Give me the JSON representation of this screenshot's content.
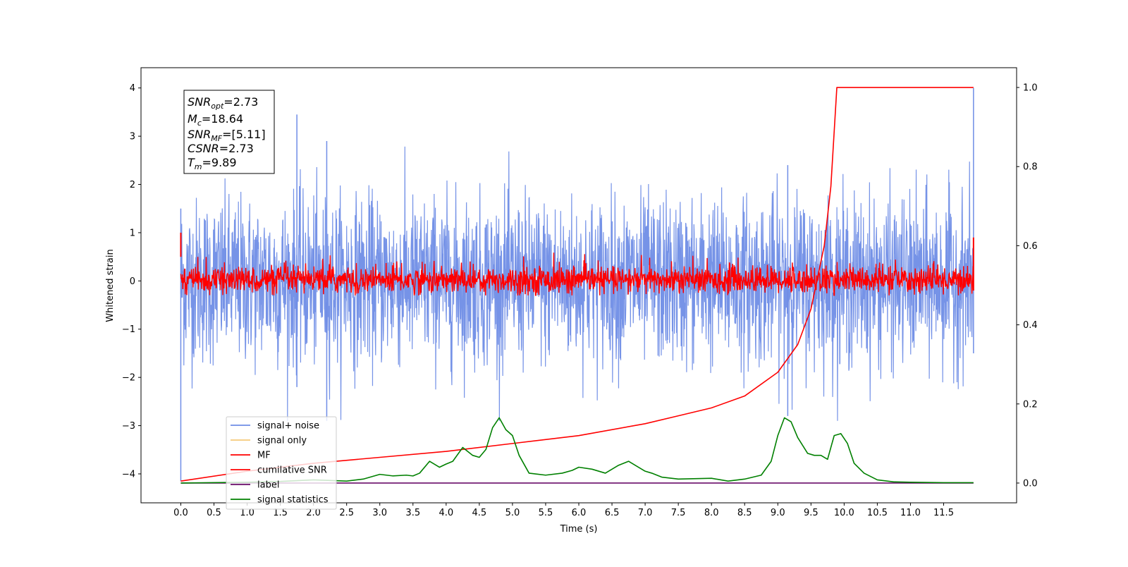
{
  "chart_data": {
    "type": "line",
    "xlabel": "Time (s)",
    "ylabel": "Whitened strain",
    "xlim": [
      -0.6,
      12.6
    ],
    "ylim": [
      -4.6,
      4.42
    ],
    "ylim_right": [
      -0.05,
      1.05
    ],
    "x_ticks": [
      "0.0",
      "0.5",
      "1.0",
      "1.5",
      "2.0",
      "2.5",
      "3.0",
      "3.5",
      "4.0",
      "4.5",
      "5.0",
      "5.5",
      "6.0",
      "6.5",
      "7.0",
      "7.5",
      "8.0",
      "8.5",
      "9.0",
      "9.5",
      "10.0",
      "10.5",
      "11.0",
      "11.5"
    ],
    "y_ticks_left": [
      "4",
      "3",
      "2",
      "1",
      "0",
      "−1",
      "−2",
      "−3",
      "−4"
    ],
    "y_ticks_right": [
      "1.0",
      "0.8",
      "0.6",
      "0.4",
      "0.2",
      "0.0"
    ],
    "grid": false,
    "legend_position": "lower-left",
    "info_box": {
      "snr_opt": {
        "base": "SNR",
        "sub": "opt",
        "value": "=2.73"
      },
      "mc": {
        "base": "M",
        "sub": "c",
        "value": "=18.64"
      },
      "snr_mf": {
        "base": "SNR",
        "sub": "MF",
        "value": "=[5.11]"
      },
      "csnr": {
        "base": "CSNR",
        "sub": "",
        "value": "=2.73"
      },
      "tm": {
        "base": "T",
        "sub": "m",
        "value": "=9.89"
      }
    },
    "series": [
      {
        "name": "signal+ noise",
        "axis": "left",
        "color": "#6f8de6",
        "description_range": [
          -2.9,
          3.45
        ],
        "spike_times": [
          1.75,
          2.2,
          9.15,
          11.95
        ]
      },
      {
        "name": "signal only",
        "axis": "left",
        "color": "#f5c97a",
        "values": []
      },
      {
        "name": "MF",
        "axis": "left",
        "color": "#ff0000",
        "description_range": [
          -0.3,
          0.75
        ]
      },
      {
        "name": "cumilative SNR",
        "axis": "right",
        "color": "#ff0000",
        "x": [
          0.0,
          1.0,
          2.0,
          3.0,
          4.0,
          5.0,
          6.0,
          7.0,
          7.5,
          8.0,
          8.5,
          9.0,
          9.3,
          9.5,
          9.7,
          9.8,
          9.89,
          11.95
        ],
        "values": [
          0.005,
          0.03,
          0.05,
          0.065,
          0.08,
          0.1,
          0.12,
          0.15,
          0.17,
          0.19,
          0.22,
          0.28,
          0.35,
          0.44,
          0.6,
          0.75,
          1.0,
          1.0
        ]
      },
      {
        "name": "label",
        "axis": "right",
        "color": "#6a0d6a",
        "x": [
          0.0,
          11.95
        ],
        "values": [
          0.0,
          0.0
        ]
      },
      {
        "name": "signal statistics",
        "axis": "right",
        "color": "#008000",
        "x": [
          0.0,
          1.0,
          1.5,
          2.0,
          2.5,
          2.75,
          3.0,
          3.2,
          3.4,
          3.5,
          3.6,
          3.75,
          3.9,
          4.0,
          4.1,
          4.25,
          4.4,
          4.5,
          4.6,
          4.7,
          4.8,
          4.9,
          5.0,
          5.1,
          5.25,
          5.5,
          5.75,
          5.9,
          6.0,
          6.2,
          6.4,
          6.6,
          6.75,
          6.9,
          7.0,
          7.1,
          7.25,
          7.5,
          8.0,
          8.25,
          8.5,
          8.75,
          8.9,
          9.0,
          9.1,
          9.2,
          9.3,
          9.45,
          9.55,
          9.65,
          9.75,
          9.85,
          9.95,
          10.05,
          10.15,
          10.3,
          10.5,
          10.75,
          11.0,
          11.5,
          11.95
        ],
        "values": [
          0.0,
          0.002,
          0.004,
          0.008,
          0.005,
          0.01,
          0.022,
          0.018,
          0.02,
          0.018,
          0.025,
          0.055,
          0.04,
          0.048,
          0.055,
          0.09,
          0.07,
          0.065,
          0.085,
          0.14,
          0.165,
          0.135,
          0.12,
          0.07,
          0.025,
          0.02,
          0.025,
          0.032,
          0.04,
          0.035,
          0.025,
          0.045,
          0.055,
          0.04,
          0.03,
          0.025,
          0.015,
          0.01,
          0.012,
          0.005,
          0.01,
          0.02,
          0.055,
          0.12,
          0.165,
          0.155,
          0.115,
          0.075,
          0.07,
          0.07,
          0.06,
          0.12,
          0.125,
          0.1,
          0.05,
          0.025,
          0.008,
          0.003,
          0.002,
          0.001,
          0.001
        ]
      }
    ]
  }
}
